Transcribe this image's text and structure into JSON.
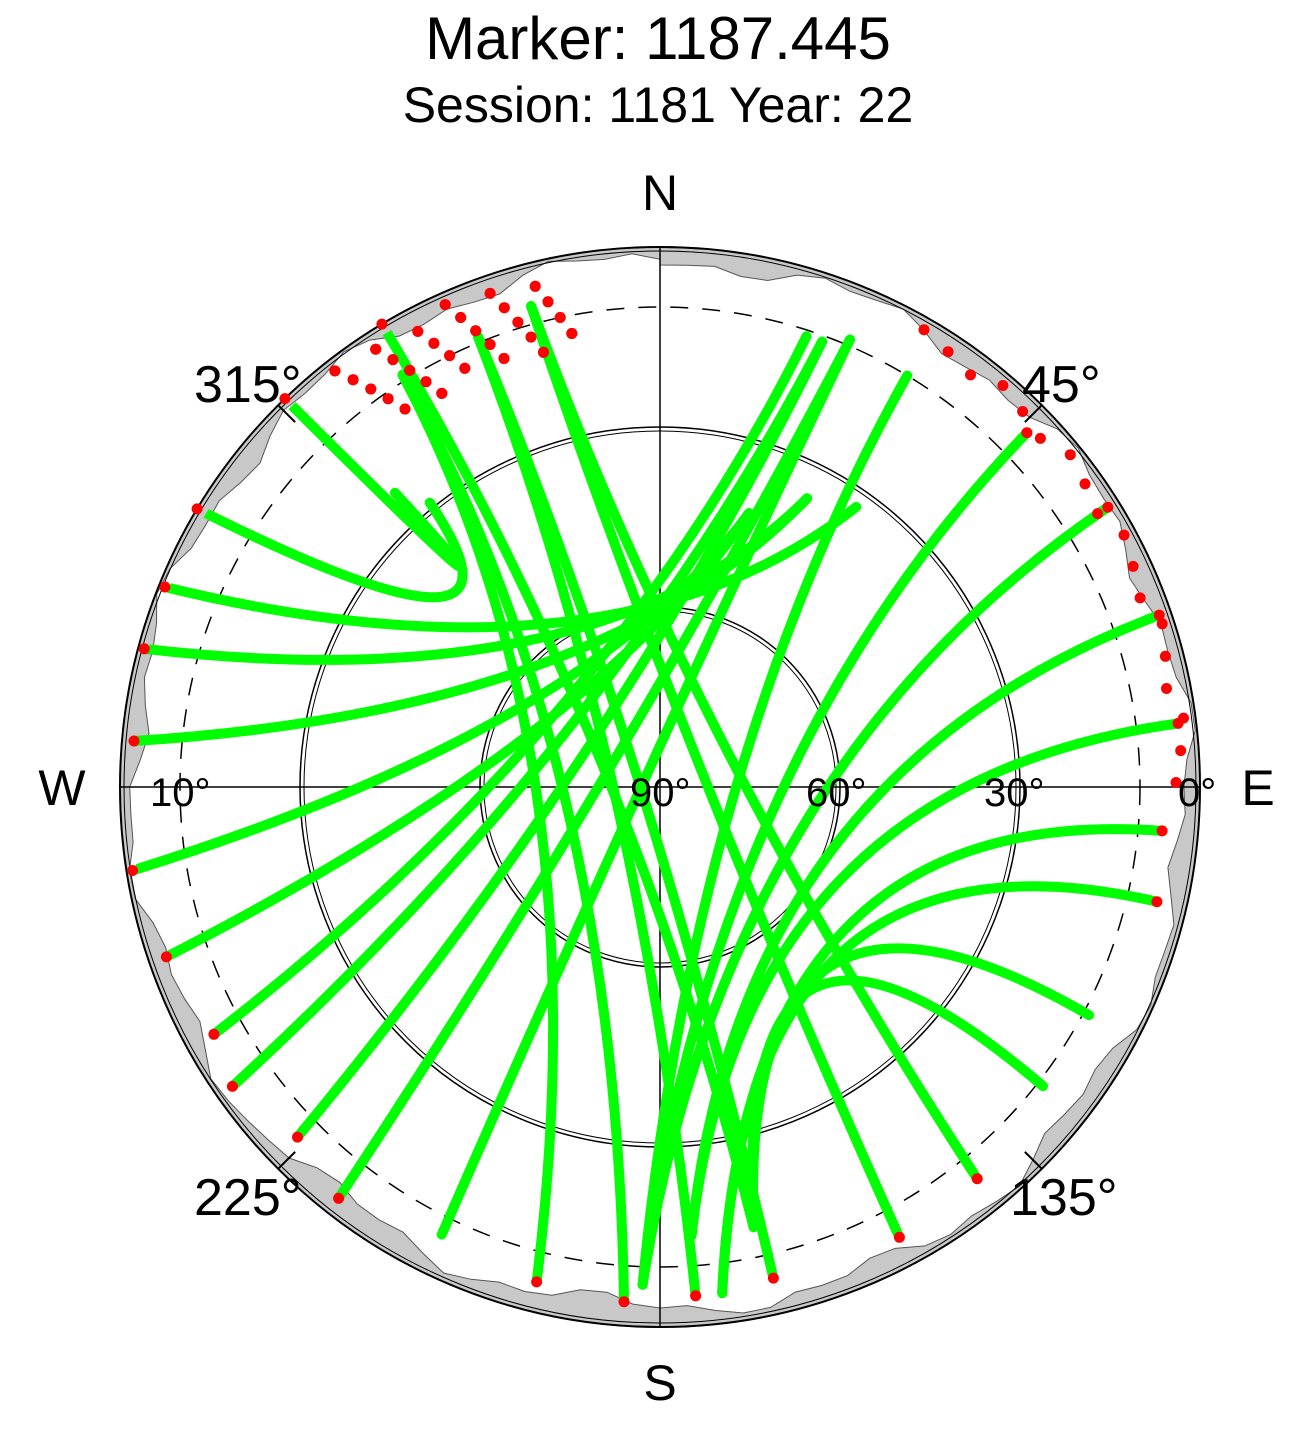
{
  "title": "Marker: 1187.445",
  "subtitle": "Session: 1181 Year: 22",
  "chart_data": {
    "type": "scatter",
    "projection": "polar-skyplot",
    "title": "Marker: 1187.445",
    "subtitle": "Session: 1181 Year: 22",
    "cardinals": {
      "north": "N",
      "south": "S",
      "east": "E",
      "west": "W"
    },
    "azimuth_labels": [
      {
        "az": 45,
        "text": "45°"
      },
      {
        "az": 135,
        "text": "135°"
      },
      {
        "az": 225,
        "text": "225°"
      },
      {
        "az": 315,
        "text": "315°"
      }
    ],
    "elevation_labels": [
      {
        "el": 90,
        "text": "90°"
      },
      {
        "el": 60,
        "text": "60°"
      },
      {
        "el": 30,
        "text": "30°"
      },
      {
        "el": 0,
        "text": "0°"
      },
      {
        "el": 10,
        "text": "10°"
      }
    ],
    "elevation_circles": [
      30,
      60
    ],
    "cutoff_elevation": 10,
    "horizon_mask": "grey band near 0–5° elevation",
    "colors": {
      "track": "#00ff00",
      "masked": "#ff0000",
      "mask": "#c8c8c8",
      "grid": "#000000"
    },
    "series": [
      {
        "values": [
          {
            "az": 329,
            "el": 0,
            "end": 15
          },
          {
            "az": 316,
            "el": 0,
            "end": 11
          },
          {
            "az": 301,
            "el": 0,
            "end": 10
          },
          {
            "az": 292,
            "el": 1,
            "end": 8
          },
          {
            "az": 285,
            "el": 1,
            "end": 7
          },
          {
            "az": 275,
            "el": 2,
            "end": 7
          },
          {
            "az": 261,
            "el": 1,
            "end": 6
          },
          {
            "az": 251,
            "el": 3,
            "end": 6
          },
          {
            "az": 241,
            "el": 5,
            "end": 5
          },
          {
            "az": 235,
            "el": 3,
            "end": 4
          },
          {
            "az": 226,
            "el": 6,
            "end": 4
          },
          {
            "az": 218,
            "el": 3,
            "end": 3
          },
          {
            "az": 206,
            "el": 7,
            "end": 3
          },
          {
            "az": 194,
            "el": 5,
            "end": 2
          },
          {
            "az": 184,
            "el": 4,
            "end": 2
          },
          {
            "az": 176,
            "el": 5,
            "end": 1
          },
          {
            "az": 167,
            "el": 6,
            "end": 1
          },
          {
            "az": 152,
            "el": 5,
            "end": 0
          },
          {
            "az": 141,
            "el": 6,
            "end": 0
          },
          {
            "az": 128,
            "el": 9,
            "end": 15
          },
          {
            "az": 118,
            "el": 9,
            "end": 15
          },
          {
            "az": 103,
            "el": 5,
            "end": 14
          },
          {
            "az": 95,
            "el": 6,
            "end": 14
          },
          {
            "az": 83,
            "el": 3,
            "end": 13
          },
          {
            "az": 71,
            "el": 2,
            "end": 13
          },
          {
            "az": 58,
            "el": 2,
            "end": 12
          },
          {
            "az": 46,
            "el": 5,
            "end": 12
          },
          {
            "az": 31,
            "el": 10,
            "end": 12
          }
        ]
      }
    ],
    "end_points_az_el": [
      [
        345,
        7
      ],
      [
        338,
        9
      ],
      [
        328,
        9
      ],
      [
        23,
        9
      ],
      [
        20,
        11
      ],
      [
        18,
        11
      ],
      [
        18,
        42
      ],
      [
        27,
        36
      ],
      [
        35,
        33
      ],
      [
        323,
        36
      ],
      [
        321,
        29
      ],
      [
        318,
        24
      ],
      [
        182,
        7
      ],
      [
        176,
        15
      ],
      [
        173,
        5
      ],
      [
        168,
        15
      ],
      [
        161,
        8
      ],
      [
        160,
        13
      ],
      [
        148,
        14
      ],
      [
        145,
        4
      ],
      [
        139,
        11
      ],
      [
        135,
        4
      ],
      [
        119,
        3
      ],
      [
        110,
        3
      ],
      [
        219,
        9
      ],
      [
        232,
        19
      ],
      [
        244,
        14
      ],
      [
        250,
        11
      ],
      [
        255,
        15
      ],
      [
        202,
        6
      ]
    ]
  }
}
